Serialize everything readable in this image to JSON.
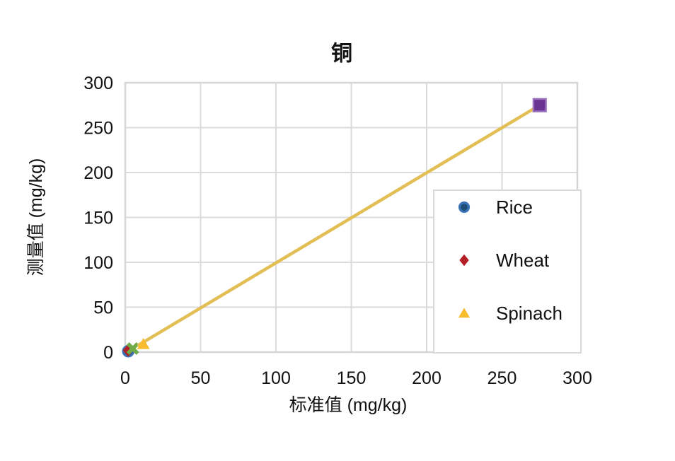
{
  "chart_data": {
    "type": "scatter",
    "title": "铜",
    "xlabel": "标准值 (mg/kg)",
    "ylabel": "测量值 (mg/kg)",
    "xlim": [
      0,
      300
    ],
    "ylim": [
      0,
      300
    ],
    "xticks": [
      0,
      50,
      100,
      150,
      200,
      250,
      300
    ],
    "yticks": [
      0,
      50,
      100,
      150,
      200,
      250,
      300
    ],
    "grid": true,
    "grid_color": "#DBDBDB",
    "plot_border_color": "#D6D6D6",
    "legend_position": "inside-right",
    "series": [
      {
        "name": "Rice",
        "marker": "circle",
        "fill": "#1F4E79",
        "stroke": "#3B74B5",
        "points": [
          [
            2,
            1
          ]
        ],
        "in_legend": true
      },
      {
        "name": "Wheat",
        "marker": "diamond",
        "fill": "#B22025",
        "stroke": "#B22025",
        "points": [
          [
            2,
            2
          ]
        ],
        "in_legend": true
      },
      {
        "name": "Spinach",
        "marker": "triangle",
        "fill": "#F8BC2C",
        "stroke": "#F8BC2C",
        "points": [
          [
            12,
            9
          ]
        ],
        "in_legend": true
      },
      {
        "name": "unlabeled-green-x",
        "marker": "x",
        "fill": "#6FAC49",
        "stroke": "#6FAC49",
        "points": [
          [
            5,
            4
          ]
        ],
        "in_legend": false
      },
      {
        "name": "unlabeled-purple-square",
        "marker": "square",
        "fill": "#6B3392",
        "stroke": "#9A70BE",
        "points": [
          [
            275,
            275
          ]
        ],
        "in_legend": false
      }
    ],
    "trendline": {
      "from": [
        9,
        8
      ],
      "to": [
        275,
        275
      ],
      "color": "#E2BE55",
      "width": 4.5
    }
  },
  "legend": {
    "entries": [
      {
        "label": "Rice"
      },
      {
        "label": "Wheat"
      },
      {
        "label": "Spinach"
      }
    ]
  }
}
